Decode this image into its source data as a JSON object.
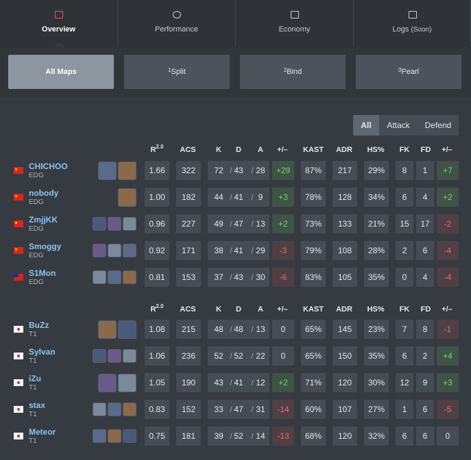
{
  "tabs": [
    {
      "label": "Overview"
    },
    {
      "label": "Performance"
    },
    {
      "label": "Economy"
    },
    {
      "label": "Logs",
      "note": "(Soon)"
    }
  ],
  "maps": [
    {
      "label": "All Maps"
    },
    {
      "number": "1",
      "label": "Split"
    },
    {
      "number": "2",
      "label": "Bind"
    },
    {
      "number": "3",
      "label": "Pearl"
    }
  ],
  "sides": [
    "All",
    "Attack",
    "Defend"
  ],
  "separator": "/",
  "teams": [
    {
      "header": {
        "rating": "R",
        "rating_sup": "2.0",
        "columns": [
          "ACS",
          "K",
          "D",
          "A",
          "+/–",
          "KAST",
          "ADR",
          "HS%",
          "FK",
          "FD",
          "+/–"
        ]
      },
      "players": [
        {
          "name": "CHICHOO",
          "team": "EDG",
          "stats": [
            "1.66",
            "322",
            "72",
            "43",
            "28",
            "+29",
            "87%",
            "217",
            "29%",
            "8",
            "1",
            "+7"
          ]
        },
        {
          "name": "nobody",
          "team": "EDG",
          "stats": [
            "1.00",
            "182",
            "44",
            "41",
            "9",
            "+3",
            "78%",
            "128",
            "34%",
            "6",
            "4",
            "+2"
          ]
        },
        {
          "name": "ZmjjKK",
          "team": "EDG",
          "stats": [
            "0.96",
            "227",
            "49",
            "47",
            "13",
            "+2",
            "73%",
            "133",
            "21%",
            "15",
            "17",
            "-2"
          ]
        },
        {
          "name": "Smoggy",
          "team": "EDG",
          "stats": [
            "0.92",
            "171",
            "38",
            "41",
            "29",
            "-3",
            "79%",
            "108",
            "28%",
            "2",
            "6",
            "-4"
          ]
        },
        {
          "name": "S1Mon",
          "team": "EDG",
          "stats": [
            "0.81",
            "153",
            "37",
            "43",
            "30",
            "-6",
            "83%",
            "105",
            "35%",
            "0",
            "4",
            "-4"
          ]
        }
      ]
    },
    {
      "header": {
        "rating": "R",
        "rating_sup": "2.0",
        "columns": [
          "ACS",
          "K",
          "D",
          "A",
          "+/–",
          "KAST",
          "ADR",
          "HS%",
          "FK",
          "FD",
          "+/–"
        ]
      },
      "players": [
        {
          "name": "BuZz",
          "team": "T1",
          "stats": [
            "1.08",
            "215",
            "48",
            "48",
            "13",
            "0",
            "65%",
            "145",
            "23%",
            "7",
            "8",
            "-1"
          ]
        },
        {
          "name": "Sylvan",
          "team": "T1",
          "stats": [
            "1.06",
            "236",
            "52",
            "52",
            "22",
            "0",
            "65%",
            "150",
            "35%",
            "6",
            "2",
            "+4"
          ]
        },
        {
          "name": "iZu",
          "team": "T1",
          "stats": [
            "1.05",
            "190",
            "43",
            "41",
            "12",
            "+2",
            "71%",
            "120",
            "30%",
            "12",
            "9",
            "+3"
          ]
        },
        {
          "name": "stax",
          "team": "T1",
          "stats": [
            "0.83",
            "152",
            "33",
            "47",
            "31",
            "-14",
            "60%",
            "107",
            "27%",
            "1",
            "6",
            "-5"
          ]
        },
        {
          "name": "Meteor",
          "team": "T1",
          "stats": [
            "0.75",
            "181",
            "39",
            "52",
            "14",
            "-13",
            "68%",
            "120",
            "32%",
            "6",
            "6",
            "0"
          ]
        }
      ]
    }
  ]
}
